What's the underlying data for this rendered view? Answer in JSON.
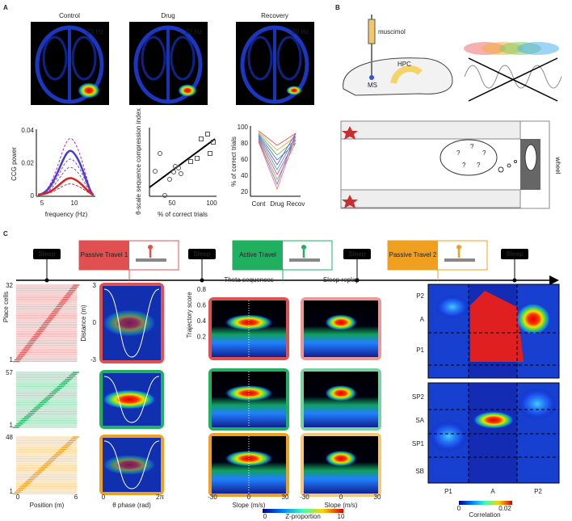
{
  "panel_a": {
    "label": "A",
    "conditions": [
      "Control",
      "Drug",
      "Recovery"
    ],
    "frequencies": [
      "23 Hz",
      "22 Hz",
      "20 Hz"
    ],
    "ccg_plot": {
      "y_label": "CCG power",
      "y_ticks": [
        0.04,
        0.02,
        0
      ],
      "x_label": "frequency (Hz)",
      "x_ticks": [
        5,
        10
      ]
    },
    "compression_plot": {
      "y_label": "θ-scale sequence compression index",
      "x_label": "% of correct trials",
      "x_ticks": [
        50,
        100
      ]
    },
    "performance_plot": {
      "y_label": "% of correct trials",
      "y_ticks": [
        100,
        80,
        60,
        40,
        20
      ],
      "categories": [
        "Cont",
        "Drug",
        "Recov"
      ]
    }
  },
  "panel_b": {
    "label": "B",
    "drug": "muscimol",
    "regions": [
      "HPC",
      "MS"
    ],
    "question_marks": [
      "?",
      "?",
      "?",
      "?",
      "?"
    ],
    "wheel": "wheel"
  },
  "panel_c": {
    "label": "C",
    "sleep": [
      "Sleep",
      "Sleep",
      "Sleep",
      "Sleep"
    ],
    "travel": [
      "Passive Travel 1",
      "Active Travel",
      "Passive Travel 2"
    ],
    "raster": {
      "y_label": "Place cells",
      "rows": [
        {
          "top": 32,
          "bottom": 1
        },
        {
          "top": 57,
          "bottom": 1
        },
        {
          "top": 48,
          "bottom": 1
        }
      ],
      "x_label": "Position (m)",
      "x_ticks": [
        0,
        6
      ]
    },
    "distance": {
      "y_label": "Distance (m)",
      "y_ticks": [
        3,
        0,
        -3
      ],
      "x_label": "θ phase (rad)",
      "x_ticks": [
        0,
        "2π"
      ]
    },
    "trajectory": {
      "titles": [
        "Theta sequences",
        "Sleep replay"
      ],
      "y_label": "Trajectory score",
      "y_ticks": [
        0.8,
        0.6,
        0.4,
        0.2
      ],
      "x_label": "Slope (m/s)",
      "x_ticks": [
        -30,
        0,
        30
      ],
      "colorbar": {
        "min": 0,
        "label": "Z-proportion",
        "max": 10
      }
    },
    "correlation": {
      "row_labels": [
        "P2",
        "A",
        "P1",
        "SP2",
        "SA",
        "SP1",
        "SB"
      ],
      "col_labels": [
        "P1",
        "A",
        "P2"
      ],
      "colorbar": {
        "min": 0,
        "label": "Correlation",
        "max": 0.02
      }
    }
  }
}
